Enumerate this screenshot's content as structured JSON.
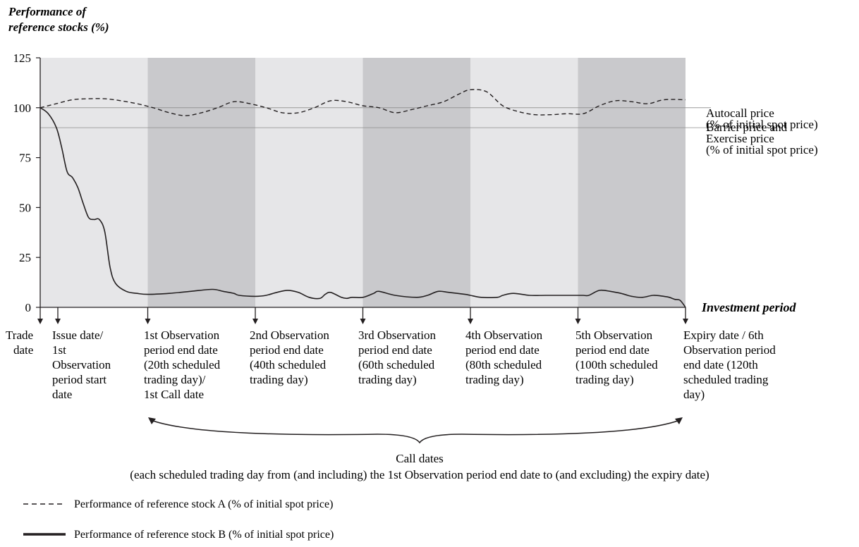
{
  "chart_data": {
    "type": "line",
    "ylabel": [
      "Performance of",
      "reference stocks (%)"
    ],
    "xlabel": "Investment period",
    "ylim": [
      0,
      125
    ],
    "yticks": [
      125,
      100,
      75,
      50,
      25,
      0
    ],
    "x_range": [
      0,
      120
    ],
    "grid": false,
    "period_boundaries": [
      0,
      20,
      40,
      60,
      80,
      100,
      120
    ],
    "reference_lines": [
      {
        "value": 100,
        "label": [
          "Autocall price",
          "(% of initial spot price)"
        ]
      },
      {
        "value": 90,
        "label": [
          "Barrier price and",
          "Exercise price",
          "(% of initial spot price)"
        ]
      }
    ],
    "series": [
      {
        "name": "Performance of reference stock A (% of initial spot price)",
        "style": "dashed",
        "x": [
          0,
          3,
          6,
          9,
          12,
          15,
          18,
          21,
          24,
          27,
          30,
          33,
          36,
          39,
          42,
          45,
          48,
          51,
          54,
          57,
          60,
          63,
          66,
          69,
          72,
          75,
          78,
          80,
          83,
          86,
          89,
          92,
          95,
          98,
          101,
          104,
          107,
          110,
          113,
          116,
          120
        ],
        "values": [
          100,
          102,
          104,
          104.5,
          104.5,
          103.5,
          102,
          100,
          97.5,
          96,
          97.5,
          100,
          103,
          102,
          100,
          97.5,
          97.5,
          100,
          103.5,
          103,
          101,
          100,
          97.5,
          99,
          101,
          103,
          107,
          109,
          108,
          101,
          98,
          96.5,
          96.5,
          97,
          97,
          101,
          103.5,
          103,
          102,
          104,
          104
        ]
      },
      {
        "name": "Performance of reference stock B (% of initial spot price)",
        "style": "solid",
        "x": [
          0,
          1.5,
          3,
          4,
          5,
          6,
          7,
          8,
          9,
          10,
          11,
          12,
          13,
          14,
          16,
          18,
          20,
          24,
          28,
          32,
          34,
          36,
          37,
          40,
          42,
          44,
          46,
          48,
          50,
          52,
          53,
          54,
          56,
          57,
          58,
          60,
          62,
          63,
          66,
          70,
          72,
          74,
          76,
          79,
          80,
          82,
          85,
          86,
          88,
          91,
          94,
          98,
          100,
          101,
          102,
          104,
          106,
          108,
          110,
          112,
          114,
          116,
          117,
          118,
          119,
          120
        ],
        "values": [
          100,
          97,
          90,
          80,
          68,
          65,
          60,
          52,
          45,
          44,
          44,
          38,
          20,
          12,
          8,
          7,
          6.5,
          7,
          8,
          9,
          8,
          7,
          6,
          5.5,
          6,
          7.5,
          8.5,
          7.5,
          5,
          4.5,
          6.5,
          7.5,
          5,
          4.5,
          5,
          5,
          7,
          8,
          6,
          5,
          6,
          8,
          7.5,
          6.5,
          6,
          5,
          5,
          6,
          7,
          6,
          6,
          6,
          6,
          6,
          6,
          8.5,
          8,
          7,
          5.5,
          5,
          6,
          5.5,
          5,
          4,
          3.5,
          0
        ]
      }
    ],
    "markers": [
      {
        "label": [
          "Trade",
          "date"
        ],
        "x": 0
      },
      {
        "label": [
          "Issue date/",
          "1st",
          "Observation",
          "period start",
          "date"
        ],
        "x": 2
      },
      {
        "label": [
          "1st Observation",
          "period end date",
          "(20th scheduled",
          "trading day)/",
          "1st Call date"
        ],
        "x": 20
      },
      {
        "label": [
          "2nd Observation",
          "period end date",
          "(40th scheduled",
          "trading day)"
        ],
        "x": 40
      },
      {
        "label": [
          "3rd  Observation",
          "period end date",
          "(60th scheduled",
          "trading day)"
        ],
        "x": 60
      },
      {
        "label": [
          "4th Observation",
          "period end date",
          "(80th scheduled",
          "trading day)"
        ],
        "x": 80
      },
      {
        "label": [
          "5th Observation",
          "period end date",
          " (100th scheduled",
          " trading day)"
        ],
        "x": 100
      },
      {
        "label": [
          "Expiry date / 6th",
          "Observation period",
          "end date (120th",
          "scheduled trading",
          "day)"
        ],
        "x": 120
      }
    ],
    "call_dates": {
      "title": "Call dates",
      "note": "(each scheduled trading day from (and including) the 1st Observation period end date to (and excluding) the expiry date)"
    },
    "legend": [
      {
        "style": "dashed",
        "label": "Performance of reference stock A (% of initial spot price)"
      },
      {
        "style": "solid",
        "label": "Performance of reference stock B (% of initial spot price)"
      }
    ]
  },
  "colors": {
    "band_light": "#e6e6e8",
    "band_dark": "#c9c9cc",
    "line": "#231f20",
    "ref_line": "#8c8c8c"
  }
}
